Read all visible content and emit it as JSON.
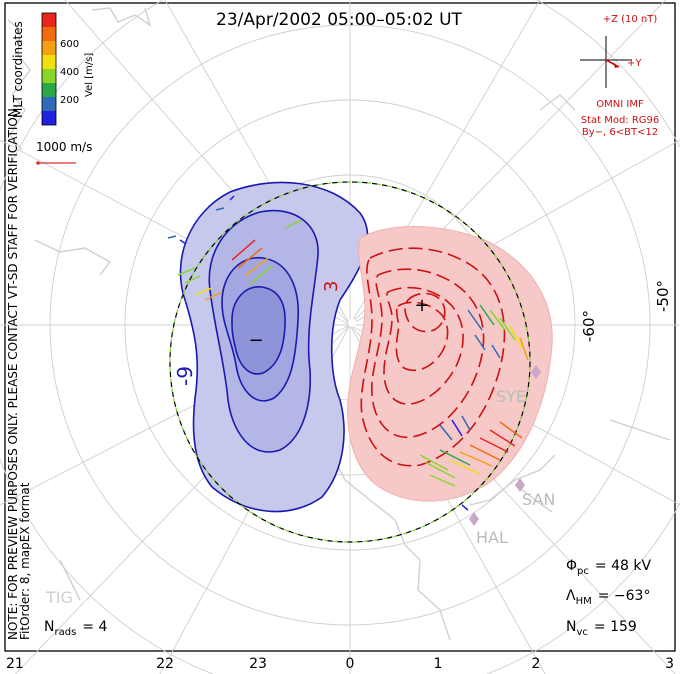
{
  "title": "23/Apr/2002 05:00–05:02 UT",
  "coordinates_label": "MLT coordinates",
  "colorbar": {
    "label": "Vel [m/s]",
    "ticks": [
      "600",
      "400",
      "200"
    ],
    "colors": [
      "#e8261c",
      "#f06a10",
      "#f5a010",
      "#f0e010",
      "#8ad628",
      "#2aa848",
      "#2f6ab8",
      "#1f20e0"
    ]
  },
  "scale_vector": {
    "label": "1000 m/s",
    "color": "#d03030"
  },
  "imf": {
    "top_label": "+Z (10 nT)",
    "right_label": "+Y",
    "source_label": "OMNI IMF",
    "model_line1": "Stat Mod: RG96",
    "model_line2": "By−, 6<BT<12",
    "color": "#cc1111"
  },
  "note": {
    "line1": "NOTE: FOR PREVIEW PURPOSES ONLY. PLEASE CONTACT VT-SD STAFF FOR VERIFICATION.",
    "line2": "FitOrder: 8, mapEX format"
  },
  "potential_labels": {
    "negative": "-9",
    "positive": "3",
    "min_marker": "−",
    "max_marker": "+"
  },
  "latitude_labels": [
    "-60°",
    "-50°"
  ],
  "stations": [
    "SYE",
    "SAN",
    "HAL",
    "TIG"
  ],
  "stats": {
    "phi_symbol": "Φ",
    "phi_sub": "pc",
    "phi_value": "= 48 kV",
    "lambda_symbol": "Λ",
    "lambda_sub": "HM",
    "lambda_value": "= −63°",
    "nvc_symbol": "N",
    "nvc_sub": "vc",
    "nvc_value": "= 159",
    "nrads_symbol": "N",
    "nrads_sub": "rads",
    "nrads_value": "= 4"
  },
  "mlt_labels": [
    "21",
    "22",
    "23",
    "0",
    "1",
    "2",
    "3"
  ],
  "colors": {
    "negative_fill": "#c6c8ec",
    "negative_line": "#1a1ab0",
    "positive_fill": "#f4c0c0",
    "positive_line": "#cc1111",
    "grid": "#cfcfcf",
    "coast": "#d0d0d0"
  }
}
